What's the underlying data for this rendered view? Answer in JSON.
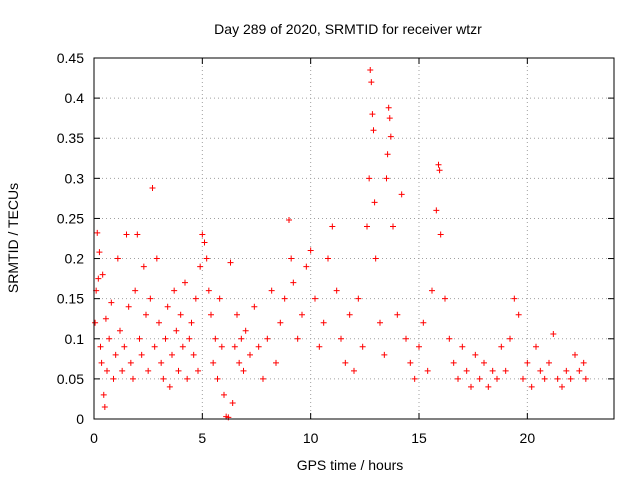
{
  "chart_data": {
    "type": "scatter",
    "title": "Day 289 of 2020, SRMTID for receiver wtzr",
    "xlabel": "GPS time / hours",
    "ylabel": "SRMTID / TECUs",
    "xlim": [
      0,
      24
    ],
    "ylim": [
      0,
      0.45
    ],
    "xticks": [
      0,
      5,
      10,
      15,
      20
    ],
    "xtick_labels": [
      "0",
      "5",
      "10",
      "15",
      "20"
    ],
    "yticks": [
      0,
      0.05,
      0.1,
      0.15,
      0.2,
      0.25,
      0.3,
      0.35,
      0.4,
      0.45
    ],
    "ytick_labels": [
      "0",
      "0.05",
      "0.1",
      "0.15",
      "0.2",
      "0.25",
      "0.3",
      "0.35",
      "0.4",
      "0.45"
    ],
    "grid": true,
    "marker": "+",
    "color": "#ff0000",
    "series": [
      {
        "name": "SRMTID",
        "points": [
          [
            0.05,
            0.12
          ],
          [
            0.1,
            0.16
          ],
          [
            0.15,
            0.232
          ],
          [
            0.2,
            0.175
          ],
          [
            0.25,
            0.208
          ],
          [
            0.3,
            0.09
          ],
          [
            0.35,
            0.07
          ],
          [
            0.4,
            0.18
          ],
          [
            0.45,
            0.03
          ],
          [
            0.5,
            0.015
          ],
          [
            0.55,
            0.125
          ],
          [
            0.6,
            0.06
          ],
          [
            0.7,
            0.1
          ],
          [
            0.8,
            0.145
          ],
          [
            0.9,
            0.05
          ],
          [
            1.0,
            0.08
          ],
          [
            1.1,
            0.2
          ],
          [
            1.2,
            0.11
          ],
          [
            1.3,
            0.06
          ],
          [
            1.4,
            0.09
          ],
          [
            1.5,
            0.23
          ],
          [
            1.6,
            0.14
          ],
          [
            1.7,
            0.07
          ],
          [
            1.8,
            0.05
          ],
          [
            1.9,
            0.16
          ],
          [
            2.0,
            0.23
          ],
          [
            2.1,
            0.1
          ],
          [
            2.2,
            0.08
          ],
          [
            2.3,
            0.19
          ],
          [
            2.4,
            0.13
          ],
          [
            2.5,
            0.06
          ],
          [
            2.6,
            0.15
          ],
          [
            2.7,
            0.288
          ],
          [
            2.8,
            0.09
          ],
          [
            2.9,
            0.2
          ],
          [
            3.0,
            0.12
          ],
          [
            3.1,
            0.07
          ],
          [
            3.2,
            0.05
          ],
          [
            3.3,
            0.1
          ],
          [
            3.4,
            0.14
          ],
          [
            3.5,
            0.04
          ],
          [
            3.6,
            0.08
          ],
          [
            3.7,
            0.16
          ],
          [
            3.8,
            0.11
          ],
          [
            3.9,
            0.06
          ],
          [
            4.0,
            0.13
          ],
          [
            4.1,
            0.09
          ],
          [
            4.2,
            0.17
          ],
          [
            4.3,
            0.05
          ],
          [
            4.4,
            0.1
          ],
          [
            4.5,
            0.12
          ],
          [
            4.6,
            0.08
          ],
          [
            4.7,
            0.15
          ],
          [
            4.8,
            0.06
          ],
          [
            4.9,
            0.19
          ],
          [
            5.0,
            0.23
          ],
          [
            5.1,
            0.22
          ],
          [
            5.2,
            0.2
          ],
          [
            5.3,
            0.16
          ],
          [
            5.4,
            0.13
          ],
          [
            5.5,
            0.07
          ],
          [
            5.6,
            0.1
          ],
          [
            5.7,
            0.05
          ],
          [
            5.8,
            0.15
          ],
          [
            5.9,
            0.09
          ],
          [
            6.0,
            0.03
          ],
          [
            6.1,
            0.003
          ],
          [
            6.2,
            0.002
          ],
          [
            6.3,
            0.195
          ],
          [
            6.4,
            0.02
          ],
          [
            6.5,
            0.09
          ],
          [
            6.6,
            0.13
          ],
          [
            6.7,
            0.07
          ],
          [
            6.8,
            0.1
          ],
          [
            6.9,
            0.06
          ],
          [
            7.0,
            0.11
          ],
          [
            7.2,
            0.08
          ],
          [
            7.4,
            0.14
          ],
          [
            7.6,
            0.09
          ],
          [
            7.8,
            0.05
          ],
          [
            8.0,
            0.1
          ],
          [
            8.2,
            0.16
          ],
          [
            8.4,
            0.07
          ],
          [
            8.6,
            0.12
          ],
          [
            8.8,
            0.15
          ],
          [
            9.0,
            0.248
          ],
          [
            9.1,
            0.2
          ],
          [
            9.2,
            0.17
          ],
          [
            9.4,
            0.1
          ],
          [
            9.6,
            0.13
          ],
          [
            9.8,
            0.19
          ],
          [
            10.0,
            0.21
          ],
          [
            10.2,
            0.15
          ],
          [
            10.4,
            0.09
          ],
          [
            10.6,
            0.12
          ],
          [
            10.8,
            0.2
          ],
          [
            11.0,
            0.24
          ],
          [
            11.2,
            0.16
          ],
          [
            11.4,
            0.1
          ],
          [
            11.6,
            0.07
          ],
          [
            11.8,
            0.13
          ],
          [
            12.0,
            0.06
          ],
          [
            12.2,
            0.15
          ],
          [
            12.4,
            0.09
          ],
          [
            12.6,
            0.24
          ],
          [
            12.7,
            0.3
          ],
          [
            12.75,
            0.435
          ],
          [
            12.8,
            0.42
          ],
          [
            12.85,
            0.38
          ],
          [
            12.9,
            0.36
          ],
          [
            12.95,
            0.27
          ],
          [
            13.0,
            0.2
          ],
          [
            13.2,
            0.12
          ],
          [
            13.4,
            0.08
          ],
          [
            13.5,
            0.3
          ],
          [
            13.55,
            0.33
          ],
          [
            13.6,
            0.388
          ],
          [
            13.65,
            0.375
          ],
          [
            13.7,
            0.352
          ],
          [
            13.8,
            0.24
          ],
          [
            14.0,
            0.13
          ],
          [
            14.2,
            0.28
          ],
          [
            14.4,
            0.1
          ],
          [
            14.6,
            0.07
          ],
          [
            14.8,
            0.05
          ],
          [
            15.0,
            0.09
          ],
          [
            15.2,
            0.12
          ],
          [
            15.4,
            0.06
          ],
          [
            15.6,
            0.16
          ],
          [
            15.8,
            0.26
          ],
          [
            15.9,
            0.317
          ],
          [
            15.95,
            0.31
          ],
          [
            16.0,
            0.23
          ],
          [
            16.2,
            0.15
          ],
          [
            16.4,
            0.1
          ],
          [
            16.6,
            0.07
          ],
          [
            16.8,
            0.05
          ],
          [
            17.0,
            0.09
          ],
          [
            17.2,
            0.06
          ],
          [
            17.4,
            0.04
          ],
          [
            17.6,
            0.08
          ],
          [
            17.8,
            0.05
          ],
          [
            18.0,
            0.07
          ],
          [
            18.2,
            0.04
          ],
          [
            18.4,
            0.06
          ],
          [
            18.6,
            0.05
          ],
          [
            18.8,
            0.09
          ],
          [
            19.0,
            0.06
          ],
          [
            19.2,
            0.1
          ],
          [
            19.4,
            0.15
          ],
          [
            19.6,
            0.13
          ],
          [
            19.8,
            0.05
          ],
          [
            20.0,
            0.07
          ],
          [
            20.2,
            0.04
          ],
          [
            20.4,
            0.09
          ],
          [
            20.6,
            0.06
          ],
          [
            20.8,
            0.05
          ],
          [
            21.0,
            0.07
          ],
          [
            21.2,
            0.106
          ],
          [
            21.4,
            0.05
          ],
          [
            21.6,
            0.04
          ],
          [
            21.8,
            0.06
          ],
          [
            22.0,
            0.05
          ],
          [
            22.2,
            0.08
          ],
          [
            22.4,
            0.06
          ],
          [
            22.6,
            0.07
          ],
          [
            22.7,
            0.05
          ]
        ]
      }
    ]
  }
}
